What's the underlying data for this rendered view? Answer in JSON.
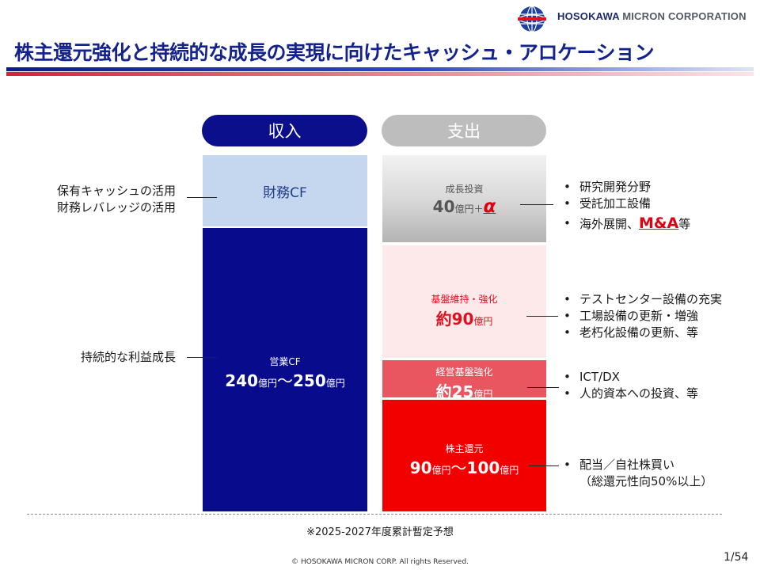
{
  "header": {
    "company_primary": "HOSOKAWA",
    "company_secondary": "MICRON CORPORATION",
    "title": "株主還元強化と持続的な成長の実現に向けたキャッシュ・アロケーション"
  },
  "columns": {
    "income_label": "収入",
    "expense_label": "支出"
  },
  "income": {
    "financial_cf": "財務CF",
    "operating_cf_label": "営業CF",
    "operating_cf_min": "240",
    "operating_cf_max": "250",
    "unit": "億円",
    "tilde": "～"
  },
  "expense": {
    "growth": {
      "label": "成長投資",
      "value": "40",
      "unit": "億円",
      "plus": "＋",
      "alpha": "α"
    },
    "base": {
      "label": "基盤維持・強化",
      "prefix": "約",
      "value": "90",
      "unit": "億円"
    },
    "management": {
      "label": "経営基盤強化",
      "prefix": "約",
      "value": "25",
      "unit": "億円"
    },
    "return": {
      "label": "株主還元",
      "min": "90",
      "max": "100",
      "unit": "億円",
      "tilde": "～"
    }
  },
  "left_labels": {
    "financing": [
      "保有キャッシュの活用",
      "財務レバレッジの活用"
    ],
    "sustainable": "持続的な利益成長"
  },
  "right_bullets": {
    "growth": [
      "研究開発分野",
      "受託加工設備"
    ],
    "growth_last_prefix": "海外展開、",
    "growth_last_highlight": "M&A",
    "growth_last_suffix": "等",
    "base": [
      "テストセンター設備の充実",
      "工場設備の更新・増強",
      "老朽化設備の更新、等"
    ],
    "management": [
      "ICT/DX",
      "人的資本への投資、等"
    ],
    "return": [
      "配当／自社株買い"
    ],
    "return_note": "（総還元性向50%以上）"
  },
  "footer": {
    "note": "※2025-2027年度累計暫定予想",
    "copyright": "© HOSOKAWA MICRON CORP.    All rights Reserved.",
    "page": "1/54"
  },
  "colors": {
    "title_blue": "#14238c",
    "income_dark": "#070b8c",
    "income_light": "#c5d7ef",
    "growth_gray": "#c9c9c9",
    "base_pink": "#fde9ea",
    "management_red": "#e95660",
    "return_red": "#f20000",
    "accent_red": "#e00012"
  },
  "icons": {
    "logo": "globe-logo-icon"
  }
}
